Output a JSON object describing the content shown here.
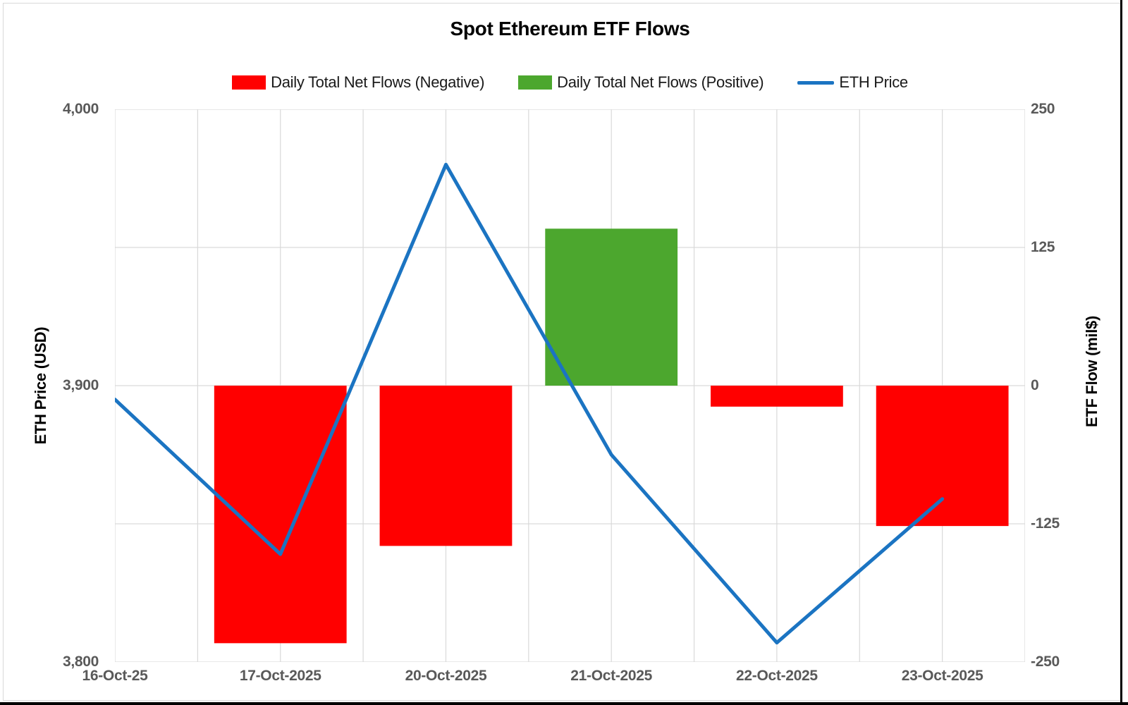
{
  "window": {
    "frame_note": "white chart canvas with light gray chart border, black window edge strips at right and bottom"
  },
  "chart_data": {
    "type": "combo bar+line",
    "title": "Spot Ethereum ETF Flows",
    "categories": [
      "16-Oct-25",
      "17-Oct-2025",
      "20-Oct-2025",
      "21-Oct-2025",
      "22-Oct-2025",
      "23-Oct-2025"
    ],
    "flows": {
      "axis": "right",
      "units": "mil$",
      "values": [
        0,
        -233,
        -145,
        142,
        -19,
        -127
      ],
      "color_negative": "#FF0000",
      "color_positive": "#4CA72E",
      "bar_width_fraction": 0.8
    },
    "price": {
      "name": "ETH Price",
      "axis": "left",
      "units": "USD",
      "values": [
        3895,
        3839,
        3980,
        3875,
        3807,
        3859
      ],
      "color": "#1B74C2",
      "line_width": 5
    },
    "left_axis": {
      "title": "ETH Price (USD)",
      "min": 3800,
      "max": 4000,
      "tick_values": [
        4000,
        3900,
        3800
      ],
      "tick_labels": [
        "4,000",
        "3,900",
        "3,800"
      ]
    },
    "right_axis": {
      "title": "ETF Flow (mil$)",
      "min": -250,
      "max": 250,
      "tick_values": [
        250,
        125,
        0,
        -125,
        -250
      ],
      "tick_labels": [
        "250",
        "125",
        "0",
        "-125",
        "-250"
      ]
    },
    "legend": {
      "position": "top",
      "entries": [
        {
          "label": "Daily Total Net Flows (Negative)",
          "marker": "rect",
          "color": "#FF0000"
        },
        {
          "label": "Daily Total Net Flows (Positive)",
          "marker": "rect",
          "color": "#4CA72E"
        },
        {
          "label": "ETH Price",
          "marker": "line",
          "color": "#1B74C2"
        }
      ]
    },
    "grid": {
      "color": "#D9D9D9",
      "vertical_divisions": 11,
      "horizontal_lines_at_right_axis_values": [
        250,
        125,
        0,
        -125,
        -250
      ]
    }
  }
}
